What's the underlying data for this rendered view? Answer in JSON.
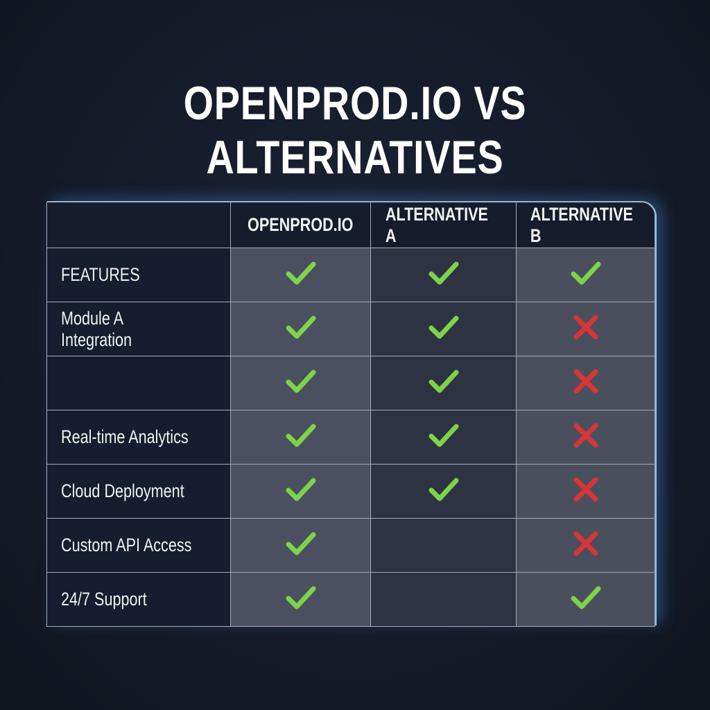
{
  "title": "OPENPROD.IO VS ALTERNATIVES",
  "colors": {
    "check": "#7ed348",
    "cross": "#d93535",
    "glow": "#6ab4f5"
  },
  "table": {
    "columns": [
      "",
      "OPENPROD.IO",
      "ALTERNATIVE A",
      "ALTERNATIVE B"
    ],
    "rows": [
      {
        "label": "FEATURES",
        "values": [
          "check",
          "check",
          "check"
        ]
      },
      {
        "label": "Module A Integration",
        "values": [
          "check",
          "check",
          "cross"
        ]
      },
      {
        "label": "",
        "values": [
          "check",
          "check",
          "cross"
        ]
      },
      {
        "label": "Real-time Analytics",
        "values": [
          "check",
          "check",
          "cross"
        ]
      },
      {
        "label": "Cloud Deployment",
        "values": [
          "check",
          "check",
          "cross"
        ]
      },
      {
        "label": "Custom API Access",
        "values": [
          "check",
          "",
          "cross"
        ]
      },
      {
        "label": "24/7 Support",
        "values": [
          "check",
          "",
          "check"
        ]
      }
    ]
  }
}
